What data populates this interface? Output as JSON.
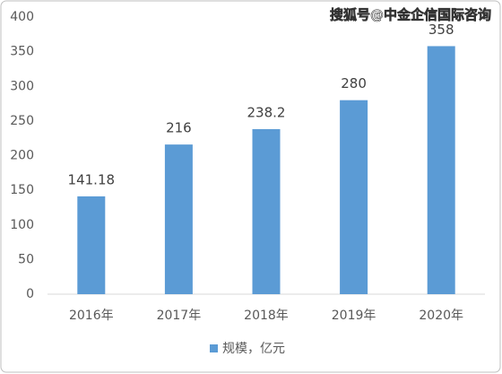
{
  "chart_data": {
    "type": "bar",
    "annotation": "搜狐号@中金企信国际咨询",
    "categories": [
      "2016年",
      "2017年",
      "2018年",
      "2019年",
      "2020年"
    ],
    "series": [
      {
        "name": "规模，亿元",
        "color": "#5b9bd5",
        "values": [
          141.18,
          216,
          238.2,
          280,
          358
        ]
      }
    ],
    "ylim": [
      0,
      400
    ],
    "yticks": [
      0,
      50,
      100,
      150,
      200,
      250,
      300,
      350,
      400
    ],
    "grid": false,
    "legend": "bottom"
  }
}
